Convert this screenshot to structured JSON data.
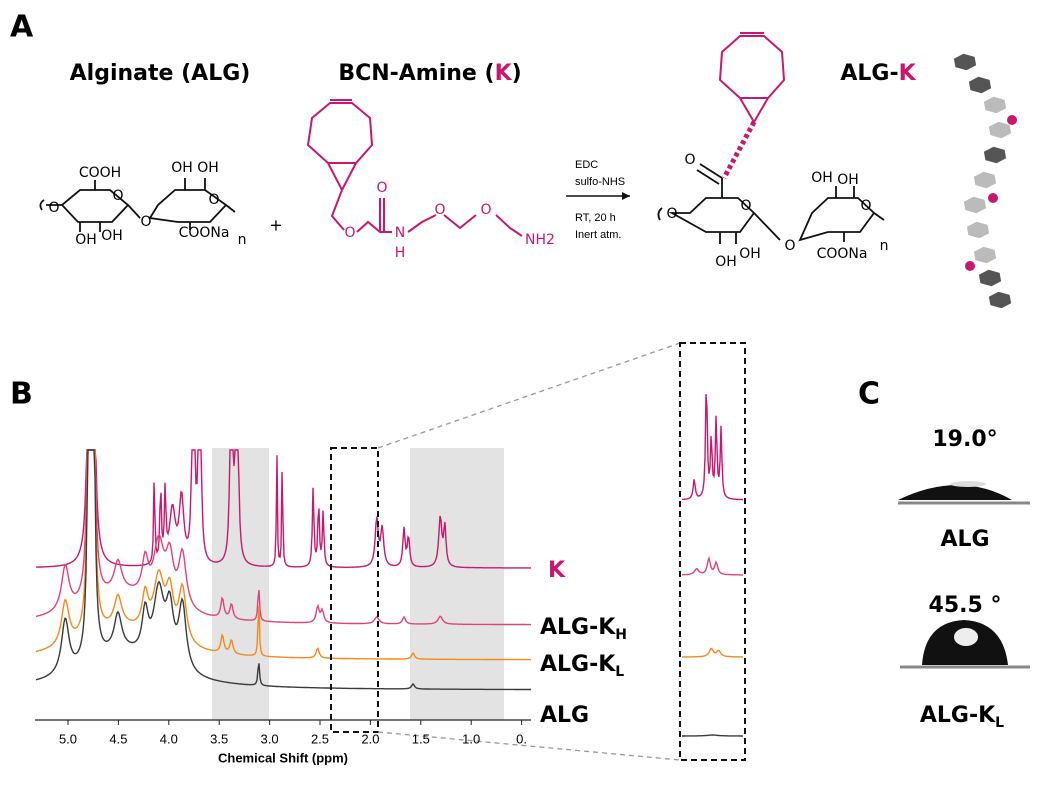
{
  "panel_a": {
    "label": "A",
    "alginate_title": "Alginate (ALG)",
    "bcn_title": {
      "text": "BCN-Amine (",
      "highlight": "K",
      "close": ")"
    },
    "product_title": {
      "text": "ALG-",
      "highlight": "K"
    },
    "alginate_atoms": [
      "COOH",
      "OH",
      "OH",
      "O",
      "O",
      "OH",
      "OH",
      "O",
      "COONa",
      "n",
      "O"
    ],
    "plus": "+",
    "bcn_atoms": [
      "O",
      "O",
      "N",
      "H",
      "O",
      "O",
      "NH2"
    ],
    "conditions": [
      "EDC",
      "sulfo-NHS",
      "RT, 20 h",
      "Inert atm."
    ],
    "product_atoms": [
      "O",
      "O",
      "OH",
      "OH",
      "O",
      "O",
      "OH",
      "OH",
      "O",
      "COONa",
      "n"
    ]
  },
  "panel_b": {
    "label": "B",
    "traces": [
      {
        "name": "K"
      },
      {
        "name": "ALG-K",
        "sub": "H"
      },
      {
        "name": "ALG-K",
        "sub": "L"
      },
      {
        "name": "ALG"
      }
    ],
    "xticks": [
      "5.0",
      "4.5",
      "4.0",
      "3.5",
      "3.0",
      "2.5",
      "2.0",
      "1.5",
      "1.0",
      "0."
    ],
    "x_label": "Chemical Shift (ppm)"
  },
  "panel_c": {
    "label": "C",
    "samples": [
      {
        "angle": "19.0°",
        "name": "ALG"
      },
      {
        "angle": "45.5 °",
        "name": "ALG-K",
        "sub": "L"
      }
    ]
  }
}
